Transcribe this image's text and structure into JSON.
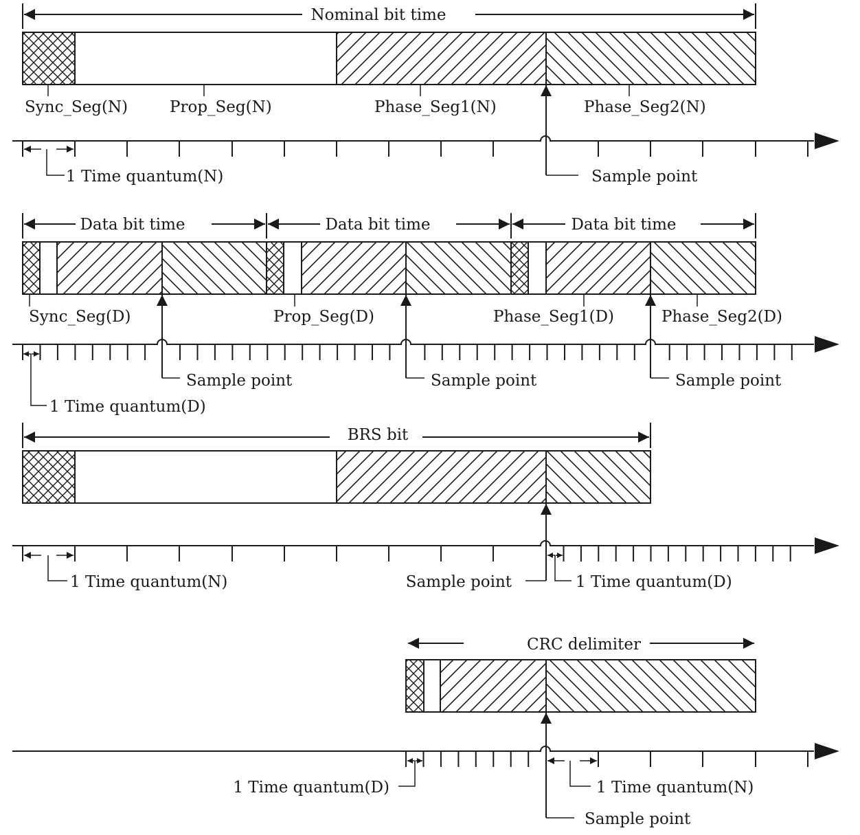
{
  "nominal": {
    "title": "Nominal bit time",
    "sync": "Sync_Seg(N)",
    "prop": "Prop_Seg(N)",
    "phase1": "Phase_Seg1(N)",
    "phase2": "Phase_Seg2(N)",
    "quantum": "1 Time quantum(N)",
    "sample": "Sample point"
  },
  "data": {
    "bit_titles": [
      "Data bit time",
      "Data bit time",
      "Data bit time"
    ],
    "sync": "Sync_Seg(D)",
    "prop": "Prop_Seg(D)",
    "phase1": "Phase_Seg1(D)",
    "phase2": "Phase_Seg2(D)",
    "samples": [
      "Sample point",
      "Sample point",
      "Sample point"
    ],
    "quantum": "1 Time quantum(D)"
  },
  "brs": {
    "title": "BRS bit",
    "quantum_n": "1 Time quantum(N)",
    "sample": "Sample point",
    "quantum_d": "1 Time quantum(D)"
  },
  "crc": {
    "title": "CRC delimiter",
    "quantum_d": "1 Time quantum(D)",
    "quantum_n": "1 Time quantum(N)",
    "sample": "Sample point"
  }
}
